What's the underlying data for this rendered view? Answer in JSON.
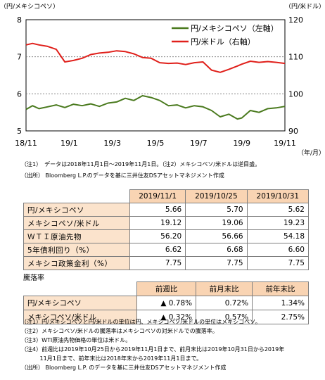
{
  "chart_data": {
    "type": "line",
    "left_axis_unit": "（円/メキシコペソ）",
    "right_axis_unit": "（円/米ドル）",
    "x_unit": "（年/月）",
    "x_ticks": [
      "18/11",
      "19/1",
      "19/3",
      "19/5",
      "19/7",
      "19/9",
      "19/11"
    ],
    "y_left_ticks": [
      "5",
      "6",
      "7",
      "8"
    ],
    "y_right_ticks": [
      "90",
      "100",
      "110",
      "120"
    ],
    "ylim_left": [
      5,
      8
    ],
    "ylim_right": [
      90,
      120
    ],
    "x_range": [
      0,
      12
    ],
    "legend_position": "top-right",
    "series": [
      {
        "name": "円/メキシコペソ（左軸）",
        "axis": "left",
        "color": "#4a7a1e",
        "x": [
          0,
          0.3,
          0.6,
          1,
          1.4,
          1.8,
          2.2,
          2.6,
          3,
          3.4,
          3.8,
          4.2,
          4.6,
          5,
          5.4,
          5.8,
          6.2,
          6.6,
          7,
          7.4,
          7.8,
          8.2,
          8.6,
          9,
          9.4,
          9.8,
          10,
          10.4,
          10.8,
          11.2,
          11.6,
          12
        ],
        "values": [
          5.58,
          5.68,
          5.6,
          5.65,
          5.7,
          5.63,
          5.72,
          5.68,
          5.73,
          5.66,
          5.75,
          5.78,
          5.88,
          5.82,
          5.95,
          5.9,
          5.82,
          5.68,
          5.7,
          5.62,
          5.68,
          5.65,
          5.55,
          5.38,
          5.45,
          5.32,
          5.35,
          5.55,
          5.5,
          5.6,
          5.62,
          5.66
        ]
      },
      {
        "name": "円/米ドル（右軸）",
        "axis": "right",
        "color": "#e0201b",
        "x": [
          0,
          0.3,
          0.6,
          1,
          1.4,
          1.8,
          2.2,
          2.6,
          3,
          3.4,
          3.8,
          4.2,
          4.6,
          5,
          5.4,
          5.8,
          6.2,
          6.6,
          7,
          7.4,
          7.8,
          8.2,
          8.6,
          9,
          9.4,
          9.8,
          10,
          10.4,
          10.8,
          11.2,
          11.6,
          12
        ],
        "values": [
          113.2,
          113.6,
          113.2,
          112.8,
          112.0,
          108.6,
          109.0,
          109.6,
          110.6,
          111.0,
          111.2,
          111.6,
          111.4,
          110.8,
          109.8,
          109.6,
          108.4,
          108.2,
          108.3,
          107.9,
          108.4,
          108.6,
          106.4,
          105.8,
          106.6,
          107.5,
          108.0,
          108.8,
          108.5,
          108.7,
          108.5,
          108.2
        ]
      }
    ]
  },
  "chart_notes": [
    "（注1）　データは2018年11月1日～2019年11月1日。（注2）メキシコペソ/米ドルは逆目盛。",
    "（出所） Bloomberg L.P.のデータを基に三井住友DSアセットマネジメント作成"
  ],
  "table1": {
    "headers": [
      "2019/11/1",
      "2019/10/25",
      "2019/10/31"
    ],
    "rows": [
      {
        "label": "円/メキシコペソ",
        "values": [
          "5.66",
          "5.70",
          "5.62"
        ]
      },
      {
        "label": "メキシコペソ/米ドル",
        "values": [
          "19.12",
          "19.06",
          "19.23"
        ]
      },
      {
        "label": "ＷＴＩ原油先物",
        "values": [
          "56.20",
          "56.66",
          "54.18"
        ]
      },
      {
        "label": "5年債利回り（%）",
        "values": [
          "6.62",
          "6.68",
          "6.60"
        ]
      },
      {
        "label": "メキシコ政策金利（%）",
        "values": [
          "7.75",
          "7.75",
          "7.75"
        ]
      }
    ]
  },
  "table2": {
    "title": "騰落率",
    "headers": [
      "前週比",
      "前月末比",
      "前年末比"
    ],
    "rows": [
      {
        "label": "円/メキシコペソ",
        "values": [
          "▲ 0.78%",
          "0.72%",
          "1.34%"
        ]
      },
      {
        "label": "メキシコペソ/米ドル",
        "values": [
          "▲ 0.32%",
          "0.57%",
          "2.75%"
        ]
      }
    ]
  },
  "notes": [
    "（注1）円/メキシコペソと円/米ドルの単位は円、メキシコペソ/米ドルの単位はメキシコペソ。",
    "（注2）メキシコペソ/米ドルの騰落率はメキシコペソの対米ドルでの騰落率。",
    "（注3）WTI原油先物価格の単位は米ドル。",
    "（注4）前週比は2019年10月25日から2019年11月1日まで、前月末比は2019年10月31日から2019年",
    "　　　 11月1日まで、前年末比は2018年末から2019年11月1日まで。",
    "（出所） Bloomberg L.P. のデータを基に三井住友DSアセットマネジメント作成"
  ]
}
